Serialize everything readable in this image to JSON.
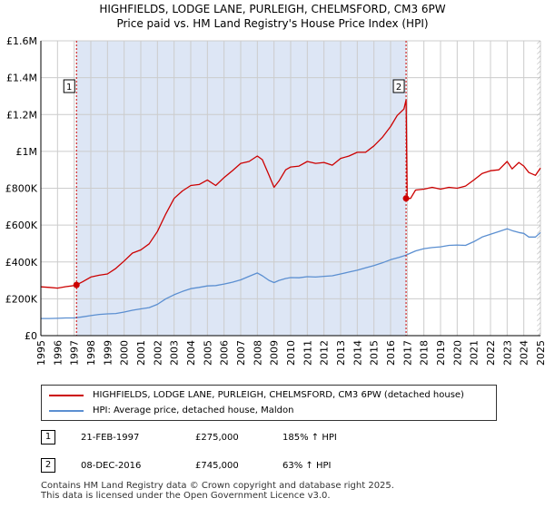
{
  "title_line1": "HIGHFIELDS, LODGE LANE, PURLEIGH, CHELMSFORD, CM3 6PW",
  "title_line2": "Price paid vs. HM Land Registry's House Price Index (HPI)",
  "chart_data": {
    "type": "line",
    "xlim": [
      1995,
      2025
    ],
    "ylim": [
      0,
      1600000
    ],
    "x_ticks": [
      1995,
      1996,
      1997,
      1998,
      1999,
      2000,
      2001,
      2002,
      2003,
      2004,
      2005,
      2006,
      2007,
      2008,
      2009,
      2010,
      2011,
      2012,
      2013,
      2014,
      2015,
      2016,
      2017,
      2018,
      2019,
      2020,
      2021,
      2022,
      2023,
      2024,
      2025
    ],
    "y_ticks": [
      0,
      200000,
      400000,
      600000,
      800000,
      1000000,
      1200000,
      1400000,
      1600000
    ],
    "y_tick_labels": [
      "£0",
      "£200K",
      "£400K",
      "£600K",
      "£800K",
      "£1M",
      "£1.2M",
      "£1.4M",
      "£1.6M"
    ],
    "grid": true,
    "colors": {
      "property": "#cc0000",
      "hpi": "#5b8fd1",
      "shade": "#dde6f5",
      "grid": "#cccccc"
    },
    "series": [
      {
        "name": "HIGHFIELDS, LODGE LANE, PURLEIGH, CHELMSFORD, CM3 6PW (detached house)",
        "color": "#cc0000",
        "x": [
          1995.0,
          1995.5,
          1996.0,
          1996.5,
          1997.0,
          1997.14,
          1997.5,
          1998.0,
          1998.5,
          1999.0,
          1999.5,
          2000.0,
          2000.5,
          2001.0,
          2001.5,
          2002.0,
          2002.5,
          2003.0,
          2003.5,
          2004.0,
          2004.5,
          2005.0,
          2005.5,
          2006.0,
          2006.5,
          2007.0,
          2007.5,
          2008.0,
          2008.3,
          2008.7,
          2009.0,
          2009.3,
          2009.7,
          2010.0,
          2010.5,
          2011.0,
          2011.5,
          2012.0,
          2012.5,
          2013.0,
          2013.5,
          2014.0,
          2014.5,
          2015.0,
          2015.5,
          2016.0,
          2016.4,
          2016.8,
          2016.93,
          2017.0,
          2017.2,
          2017.5,
          2018.0,
          2018.5,
          2019.0,
          2019.5,
          2020.0,
          2020.5,
          2021.0,
          2021.5,
          2022.0,
          2022.5,
          2023.0,
          2023.3,
          2023.7,
          2024.0,
          2024.3,
          2024.7,
          2025.0
        ],
        "y": [
          265000,
          262000,
          258000,
          266000,
          272000,
          275000,
          292000,
          318000,
          328000,
          335000,
          365000,
          405000,
          448000,
          465000,
          498000,
          565000,
          660000,
          745000,
          785000,
          815000,
          820000,
          845000,
          815000,
          858000,
          895000,
          935000,
          945000,
          975000,
          955000,
          870000,
          805000,
          840000,
          900000,
          915000,
          920000,
          945000,
          935000,
          940000,
          925000,
          962000,
          975000,
          995000,
          995000,
          1030000,
          1075000,
          1135000,
          1195000,
          1230000,
          1280000,
          745000,
          745000,
          790000,
          795000,
          805000,
          795000,
          805000,
          800000,
          812000,
          845000,
          880000,
          895000,
          900000,
          945000,
          905000,
          940000,
          920000,
          885000,
          870000,
          910000
        ]
      },
      {
        "name": "HPI: Average price, detached house, Maldon",
        "color": "#5b8fd1",
        "x": [
          1995.0,
          1995.5,
          1996.0,
          1996.5,
          1997.0,
          1997.5,
          1998.0,
          1998.5,
          1999.0,
          1999.5,
          2000.0,
          2000.5,
          2001.0,
          2001.5,
          2002.0,
          2002.5,
          2003.0,
          2003.5,
          2004.0,
          2004.5,
          2005.0,
          2005.5,
          2006.0,
          2006.5,
          2007.0,
          2007.5,
          2008.0,
          2008.3,
          2008.7,
          2009.0,
          2009.3,
          2009.7,
          2010.0,
          2010.5,
          2011.0,
          2011.5,
          2012.0,
          2012.5,
          2013.0,
          2013.5,
          2014.0,
          2014.5,
          2015.0,
          2015.5,
          2016.0,
          2016.5,
          2016.93,
          2017.0,
          2017.5,
          2018.0,
          2018.5,
          2019.0,
          2019.5,
          2020.0,
          2020.5,
          2021.0,
          2021.5,
          2022.0,
          2022.5,
          2023.0,
          2023.3,
          2023.7,
          2024.0,
          2024.3,
          2024.7,
          2025.0
        ],
        "y": [
          93000,
          93000,
          94000,
          96000,
          96000,
          102000,
          109000,
          115000,
          118000,
          120000,
          128000,
          138000,
          145000,
          152000,
          170000,
          200000,
          222000,
          240000,
          255000,
          262000,
          270000,
          272000,
          280000,
          290000,
          303000,
          322000,
          340000,
          325000,
          300000,
          288000,
          300000,
          310000,
          315000,
          314000,
          320000,
          318000,
          322000,
          325000,
          335000,
          345000,
          355000,
          368000,
          380000,
          395000,
          412000,
          425000,
          437000,
          440000,
          460000,
          472000,
          478000,
          482000,
          490000,
          492000,
          490000,
          510000,
          535000,
          550000,
          565000,
          580000,
          570000,
          560000,
          555000,
          535000,
          535000,
          560000
        ]
      }
    ],
    "markers": [
      {
        "label": "1",
        "x": 1997.14,
        "y": 275000
      },
      {
        "label": "2",
        "x": 2016.93,
        "y": 745000
      }
    ],
    "hatched_after": 2024.8,
    "legend_position": "bottom"
  },
  "legend": {
    "property_label": "HIGHFIELDS, LODGE LANE, PURLEIGH, CHELMSFORD, CM3 6PW (detached house)",
    "hpi_label": "HPI: Average price, detached house, Maldon"
  },
  "transactions": [
    {
      "num": "1",
      "date": "21-FEB-1997",
      "price": "£275,000",
      "hpi": "185% ↑ HPI"
    },
    {
      "num": "2",
      "date": "08-DEC-2016",
      "price": "£745,000",
      "hpi": "63% ↑ HPI"
    }
  ],
  "footer_line1": "Contains HM Land Registry data © Crown copyright and database right 2025.",
  "footer_line2": "This data is licensed under the Open Government Licence v3.0."
}
